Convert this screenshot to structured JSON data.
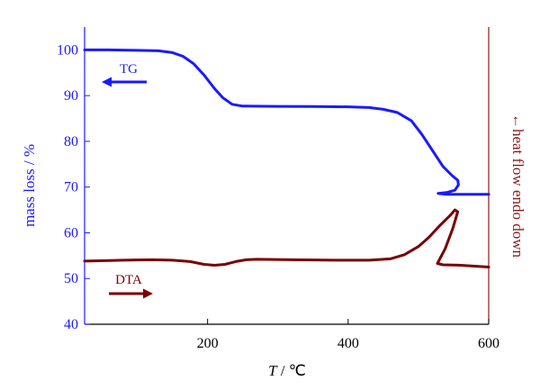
{
  "chart_data": {
    "type": "line",
    "xlabel_italic": "T",
    "xlabel_unit": " / ℃",
    "ylabel_left": "mass loss / %",
    "ylabel_right": "←heat flow endo down",
    "xlim": [
      25,
      600
    ],
    "ylim": [
      40,
      105
    ],
    "x_ticks": [
      200,
      400,
      600
    ],
    "y_ticks": [
      40,
      50,
      60,
      70,
      80,
      90,
      100
    ],
    "grid": false,
    "colors": {
      "TG": "#1a1aff",
      "DTA": "#7a0000",
      "left_axis": "#1a1aff",
      "right_axis": "#8b1a1a",
      "x_axis": "#000000"
    },
    "annotations": [
      {
        "text": "TG",
        "arrow": "left",
        "series": "TG"
      },
      {
        "text": "DTA",
        "arrow": "right",
        "series": "DTA"
      }
    ],
    "series": [
      {
        "name": "TG",
        "axis": "left",
        "points": [
          [
            25,
            100.0
          ],
          [
            60,
            100.0
          ],
          [
            100,
            99.9
          ],
          [
            130,
            99.8
          ],
          [
            150,
            99.4
          ],
          [
            165,
            98.6
          ],
          [
            180,
            97.0
          ],
          [
            195,
            94.5
          ],
          [
            210,
            91.5
          ],
          [
            222,
            89.5
          ],
          [
            235,
            88.1
          ],
          [
            250,
            87.7
          ],
          [
            300,
            87.65
          ],
          [
            350,
            87.6
          ],
          [
            400,
            87.55
          ],
          [
            430,
            87.4
          ],
          [
            450,
            87.0
          ],
          [
            470,
            86.3
          ],
          [
            490,
            84.5
          ],
          [
            505,
            81.5
          ],
          [
            520,
            78.0
          ],
          [
            535,
            74.5
          ],
          [
            548,
            72.5
          ],
          [
            556,
            71.5
          ],
          [
            557,
            70.5
          ],
          [
            552,
            69.3
          ],
          [
            540,
            68.8
          ],
          [
            528,
            68.6
          ],
          [
            540,
            68.4
          ],
          [
            560,
            68.4
          ],
          [
            580,
            68.4
          ],
          [
            600,
            68.4
          ]
        ]
      },
      {
        "name": "DTA",
        "axis": "left",
        "points": [
          [
            25,
            53.8
          ],
          [
            80,
            54.0
          ],
          [
            120,
            54.1
          ],
          [
            150,
            54.0
          ],
          [
            175,
            53.7
          ],
          [
            195,
            53.1
          ],
          [
            210,
            52.9
          ],
          [
            225,
            53.1
          ],
          [
            240,
            53.7
          ],
          [
            255,
            54.1
          ],
          [
            270,
            54.2
          ],
          [
            320,
            54.1
          ],
          [
            380,
            54.0
          ],
          [
            430,
            54.0
          ],
          [
            460,
            54.3
          ],
          [
            480,
            55.2
          ],
          [
            500,
            57.0
          ],
          [
            515,
            59.0
          ],
          [
            530,
            61.5
          ],
          [
            545,
            63.8
          ],
          [
            552,
            65.0
          ],
          [
            556,
            64.6
          ],
          [
            549,
            61.0
          ],
          [
            538,
            56.5
          ],
          [
            527,
            53.3
          ],
          [
            535,
            53.0
          ],
          [
            560,
            52.9
          ],
          [
            580,
            52.7
          ],
          [
            600,
            52.5
          ]
        ]
      }
    ]
  }
}
